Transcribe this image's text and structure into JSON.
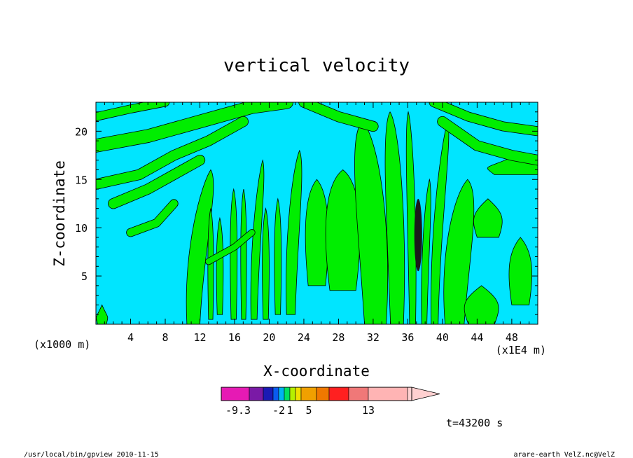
{
  "chart_data": {
    "type": "heatmap",
    "title": "vertical velocity",
    "xlabel": "X-coordinate",
    "ylabel": "Z-coordinate",
    "x_unit_left": "(x1000 m)",
    "x_unit_right": "(x1E4 m)",
    "xlim": [
      0,
      51
    ],
    "ylim": [
      0,
      23
    ],
    "x_ticks": [
      "4",
      "8",
      "12",
      "16",
      "20",
      "24",
      "28",
      "32",
      "36",
      "40",
      "44",
      "48"
    ],
    "x_tick_values": [
      4,
      8,
      12,
      16,
      20,
      24,
      28,
      32,
      36,
      40,
      44,
      48
    ],
    "y_ticks": [
      "5",
      "10",
      "15",
      "20"
    ],
    "y_tick_values": [
      5,
      10,
      15,
      20
    ],
    "background_color": "#00e5ff",
    "positive_color": "#00ee00",
    "green_bands": [
      {
        "x0": 0.2,
        "x1": 1.2,
        "y0": 0,
        "y1": 2,
        "tilt": 0
      },
      {
        "x0": 10.5,
        "x1": 12.0,
        "y0": 0,
        "y1": 16,
        "tilt": 2
      },
      {
        "x0": 13.0,
        "x1": 13.5,
        "y0": 0.5,
        "y1": 12,
        "tilt": 0
      },
      {
        "x0": 14.0,
        "x1": 14.6,
        "y0": 1,
        "y1": 11,
        "tilt": 0
      },
      {
        "x0": 15.6,
        "x1": 16.2,
        "y0": 0.5,
        "y1": 14,
        "tilt": 0
      },
      {
        "x0": 16.8,
        "x1": 17.3,
        "y0": 0.5,
        "y1": 14,
        "tilt": 0
      },
      {
        "x0": 17.9,
        "x1": 18.6,
        "y0": 0.5,
        "y1": 17,
        "tilt": 1
      },
      {
        "x0": 19.3,
        "x1": 19.9,
        "y0": 0.5,
        "y1": 12,
        "tilt": 0
      },
      {
        "x0": 20.7,
        "x1": 21.3,
        "y0": 1,
        "y1": 13,
        "tilt": 0
      },
      {
        "x0": 22.0,
        "x1": 23.0,
        "y0": 1,
        "y1": 18,
        "tilt": 1
      },
      {
        "x0": 24.5,
        "x1": 26.5,
        "y0": 4,
        "y1": 15,
        "tilt": 0
      },
      {
        "x0": 27.0,
        "x1": 30.0,
        "y0": 3.5,
        "y1": 16,
        "tilt": 0
      },
      {
        "x0": 31.0,
        "x1": 33.5,
        "y0": 0,
        "y1": 21,
        "tilt": -1.5
      },
      {
        "x0": 34.0,
        "x1": 35.5,
        "y0": 0,
        "y1": 22,
        "tilt": -0.8
      },
      {
        "x0": 36.2,
        "x1": 36.9,
        "y0": 0,
        "y1": 22,
        "tilt": -0.5
      },
      {
        "x0": 37.6,
        "x1": 38.2,
        "y0": 0,
        "y1": 15,
        "tilt": 0.6
      },
      {
        "x0": 38.7,
        "x1": 39.5,
        "y0": 0,
        "y1": 21,
        "tilt": 1.5
      },
      {
        "x0": 40.3,
        "x1": 42.5,
        "y0": 0,
        "y1": 15,
        "tilt": 1.5
      },
      {
        "x0": 43.0,
        "x1": 46.0,
        "y0": 0,
        "y1": 4,
        "tilt": 0
      },
      {
        "x0": 44.0,
        "x1": 46.5,
        "y0": 9,
        "y1": 13,
        "tilt": 0
      },
      {
        "x0": 48.0,
        "x1": 50.0,
        "y0": 2,
        "y1": 9,
        "tilt": 0
      },
      {
        "x0": 46.0,
        "x1": 51.0,
        "y0": 15.5,
        "y1": 17.5,
        "tilt": 0
      }
    ],
    "diagonal_bands": [
      {
        "points": [
          [
            0,
            18.5
          ],
          [
            6,
            19.5
          ],
          [
            12,
            21
          ],
          [
            18,
            22.5
          ],
          [
            22,
            23
          ]
        ],
        "width": 1.3
      },
      {
        "points": [
          [
            0,
            14.5
          ],
          [
            5,
            15.5
          ],
          [
            9,
            17.5
          ],
          [
            13,
            19
          ],
          [
            17,
            21
          ]
        ],
        "width": 1.0
      },
      {
        "points": [
          [
            2,
            12.5
          ],
          [
            6,
            14
          ],
          [
            9,
            15.5
          ],
          [
            12,
            17
          ]
        ],
        "width": 1.0
      },
      {
        "points": [
          [
            4,
            9.5
          ],
          [
            7,
            10.5
          ],
          [
            9,
            12.5
          ]
        ],
        "width": 0.8
      },
      {
        "points": [
          [
            0,
            21.5
          ],
          [
            4,
            22.3
          ],
          [
            8,
            23
          ]
        ],
        "width": 0.8
      },
      {
        "points": [
          [
            24,
            23
          ],
          [
            28,
            21.5
          ],
          [
            32,
            20.5
          ]
        ],
        "width": 1.0
      },
      {
        "points": [
          [
            40,
            21
          ],
          [
            44,
            18.5
          ],
          [
            48,
            17.5
          ],
          [
            51,
            17
          ]
        ],
        "width": 1.0
      },
      {
        "points": [
          [
            39,
            23
          ],
          [
            43,
            21.5
          ],
          [
            47,
            20.5
          ],
          [
            51,
            20
          ]
        ],
        "width": 0.9
      },
      {
        "points": [
          [
            13,
            6.5
          ],
          [
            16,
            8
          ],
          [
            18,
            9.5
          ]
        ],
        "width": 0.6
      }
    ],
    "strong_updraft": {
      "x": 37.2,
      "y0": 5.5,
      "y1": 13,
      "width": 0.9,
      "color": "#1a1a1a"
    },
    "colorbar": {
      "colors": [
        "#e61ab4",
        "#7a1aa6",
        "#1a1ab4",
        "#0a5af0",
        "#00b4f0",
        "#00e060",
        "#b4f000",
        "#f0e000",
        "#f0a000",
        "#f07800",
        "#ff2020",
        "#f07878",
        "#ffb4b4",
        "#ffd0d0"
      ],
      "labels": [
        "-9.3",
        "-2",
        "1",
        "5",
        "13"
      ],
      "label_index": [
        0.6,
        4.0,
        6.0,
        8.5,
        12.0
      ]
    },
    "time_label": "t=43200 s"
  },
  "footer": {
    "left": "/usr/local/bin/gpview  2010-11-15",
    "right": "arare-earth_VelZ.nc@VelZ"
  }
}
